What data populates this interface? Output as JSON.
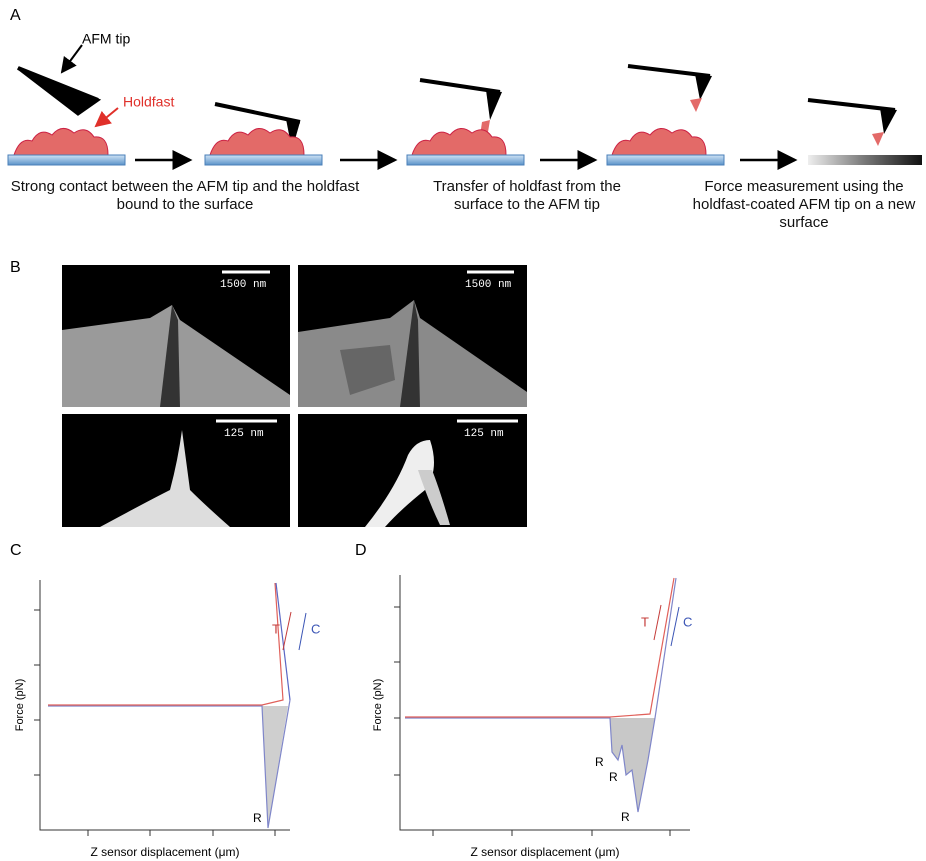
{
  "panel_a": {
    "label": "A",
    "tip_label": "AFM tip",
    "holdfast_label": "Holdfast",
    "captions": [
      "Strong contact between the AFM tip and the holdfast bound to the surface",
      "Transfer of holdfast from the surface to the AFM tip",
      "Force measurement using the holdfast-coated AFM tip on a new surface"
    ]
  },
  "panel_b": {
    "label": "B",
    "scale_bars": [
      "1500 nm",
      "1500 nm",
      "125 nm",
      "125 nm"
    ]
  },
  "panel_c": {
    "label": "C",
    "x_label": "Z sensor displacement (μm)",
    "y_label": "Force (pN)",
    "trace_label": "T",
    "retrace_label": "C",
    "rupture_labels": [
      "R"
    ]
  },
  "panel_d": {
    "label": "D",
    "x_label": "Z sensor displacement (μm)",
    "y_label": "Force (pN)",
    "trace_label": "T",
    "retrace_label": "C",
    "rupture_labels": [
      "R",
      "R",
      "R"
    ]
  }
}
